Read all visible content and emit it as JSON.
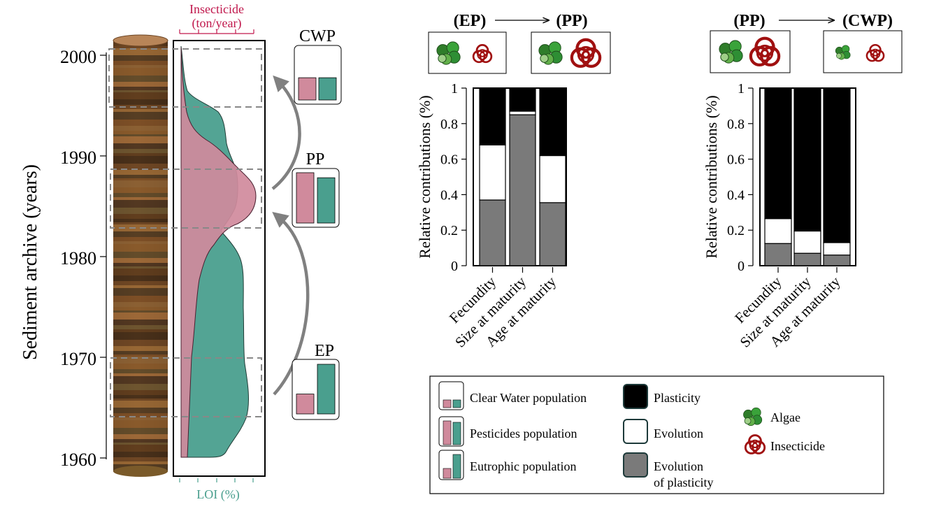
{
  "core": {
    "axis_label": "Sediment archive (years)",
    "years": [
      "2000",
      "1990",
      "1980",
      "1970",
      "1960"
    ],
    "top_axis_label_line1": "Insecticide",
    "top_axis_label_line2": "(ton/year)",
    "bottom_axis_label": "LOI (%)",
    "populations": [
      {
        "label": "CWP",
        "pink_fraction": 0.49,
        "teal_fraction": 0.49
      },
      {
        "label": "PP",
        "pink_fraction": 1.0,
        "teal_fraction": 0.9
      },
      {
        "label": "EP",
        "pink_fraction": 0.4,
        "teal_fraction": 1.0
      }
    ],
    "colors": {
      "insecticide": "#d08a9c",
      "loi": "#4a9f8e",
      "accent_red": "#c0174c"
    }
  },
  "transitions": [
    {
      "from": "(EP)",
      "to": "(PP)"
    },
    {
      "from": "(PP)",
      "to": "(CWP)"
    }
  ],
  "chart_data": [
    {
      "type": "bar",
      "stacked": true,
      "title": "",
      "ylabel": "Relative contributions (%)",
      "ylim": [
        0,
        1
      ],
      "yticks": [
        "0",
        "0.2",
        "0.4",
        "0.6",
        "0.8",
        "1"
      ],
      "categories": [
        "Fecundity",
        "Size at maturity",
        "Age at maturity"
      ],
      "series": [
        {
          "name": "Evolution of plasticity",
          "color": "#7a7a7a",
          "values": [
            0.37,
            0.85,
            0.355
          ]
        },
        {
          "name": "Evolution",
          "color": "#ffffff",
          "values": [
            0.31,
            0.02,
            0.265
          ]
        },
        {
          "name": "Plasticity",
          "color": "#000000",
          "values": [
            0.32,
            0.13,
            0.38
          ]
        }
      ]
    },
    {
      "type": "bar",
      "stacked": true,
      "title": "",
      "ylabel": "Relative contributions (%)",
      "ylim": [
        0,
        1
      ],
      "yticks": [
        "0",
        "0.2",
        "0.4",
        "0.6",
        "0.8",
        "1"
      ],
      "categories": [
        "Fecundity",
        "Size at maturity",
        "Age at maturity"
      ],
      "series": [
        {
          "name": "Evolution of plasticity",
          "color": "#7a7a7a",
          "values": [
            0.125,
            0.07,
            0.06
          ]
        },
        {
          "name": "Evolution",
          "color": "#ffffff",
          "values": [
            0.14,
            0.125,
            0.07
          ]
        },
        {
          "name": "Plasticity",
          "color": "#000000",
          "values": [
            0.735,
            0.805,
            0.87
          ]
        }
      ]
    }
  ],
  "legend": {
    "populations": [
      "Clear Water population",
      "Pesticides population",
      "Eutrophic population"
    ],
    "components": [
      "Plasticity",
      "Evolution",
      "Evolution",
      "of plasticity"
    ],
    "icons": [
      "Algae",
      "Insecticide"
    ]
  }
}
